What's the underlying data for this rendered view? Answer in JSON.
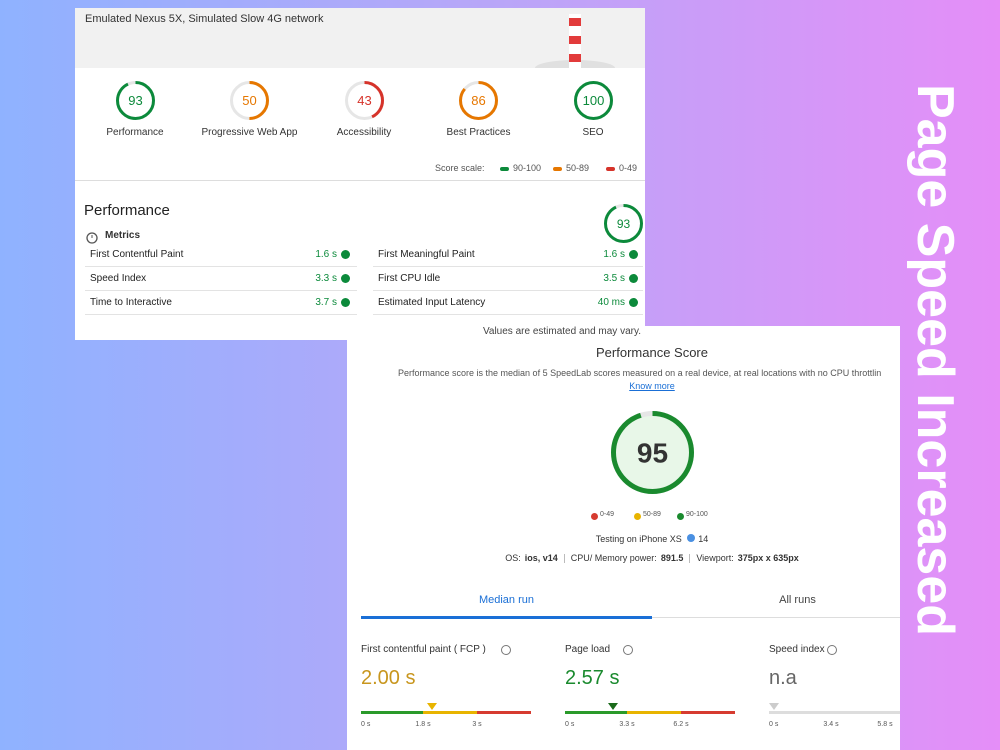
{
  "side_title": "Page Speed Increased",
  "lighthouse": {
    "device": "Emulated Nexus 5X, Simulated Slow 4G network",
    "gauges": [
      {
        "score": 93,
        "label": "Performance",
        "color": "#0c8a3b"
      },
      {
        "score": 50,
        "label": "Progressive Web App",
        "color": "#e67700"
      },
      {
        "score": 43,
        "label": "Accessibility",
        "color": "#d6332a"
      },
      {
        "score": 86,
        "label": "Best Practices",
        "color": "#e67700"
      },
      {
        "score": 100,
        "label": "SEO",
        "color": "#0c8a3b"
      }
    ],
    "scale_label": "Score scale:",
    "scale": [
      {
        "label": "90-100",
        "color": "#0c8a3b"
      },
      {
        "label": "50-89",
        "color": "#e67700"
      },
      {
        "label": "0-49",
        "color": "#d6332a"
      }
    ],
    "section_title": "Performance",
    "summary_score": 93,
    "summary_color": "#0c8a3b",
    "metrics_label": "Metrics",
    "metrics": [
      {
        "name": "First Contentful Paint",
        "value": "1.6 s"
      },
      {
        "name": "Speed Index",
        "value": "3.3 s"
      },
      {
        "name": "Time to Interactive",
        "value": "3.7 s"
      },
      {
        "name": "First Meaningful Paint",
        "value": "1.6 s"
      },
      {
        "name": "First CPU Idle",
        "value": "3.5 s"
      },
      {
        "name": "Estimated Input Latency",
        "value": "40 ms"
      }
    ],
    "footer": "Values are estimated and may vary."
  },
  "speedlab": {
    "title": "Performance Score",
    "description": "Performance score is the median of 5 SpeedLab scores measured on a real device, at real locations with no CPU throttlin",
    "link": "Know more",
    "score": 95,
    "score_color": "#1a8a2e",
    "legend": [
      {
        "label": "0-49",
        "color": "#d63b30"
      },
      {
        "label": "50-89",
        "color": "#e8b400"
      },
      {
        "label": "90-100",
        "color": "#1a8a2e"
      }
    ],
    "testing": "Testing on iPhone XS",
    "version": "14",
    "specs": [
      {
        "label": "OS:",
        "value": "ios, v14"
      },
      {
        "label": "CPU/ Memory power:",
        "value": "891.5"
      },
      {
        "label": "Viewport:",
        "value": "375px x 635px"
      }
    ],
    "tabs": [
      "Median run",
      "All runs"
    ],
    "metrics": [
      {
        "name": "First contentful paint ( FCP )",
        "value": "2.00 s",
        "color": "#c8961e",
        "ticks": [
          "0 s",
          "1.8 s",
          "3 s"
        ]
      },
      {
        "name": "Page load",
        "value": "2.57 s",
        "color": "#1a8a2e",
        "ticks": [
          "0 s",
          "3.3 s",
          "6.2 s"
        ]
      },
      {
        "name": "Speed index",
        "value": "n.a",
        "color": "#666666",
        "ticks": [
          "0 s",
          "3.4 s",
          "5.8 s"
        ]
      }
    ]
  }
}
